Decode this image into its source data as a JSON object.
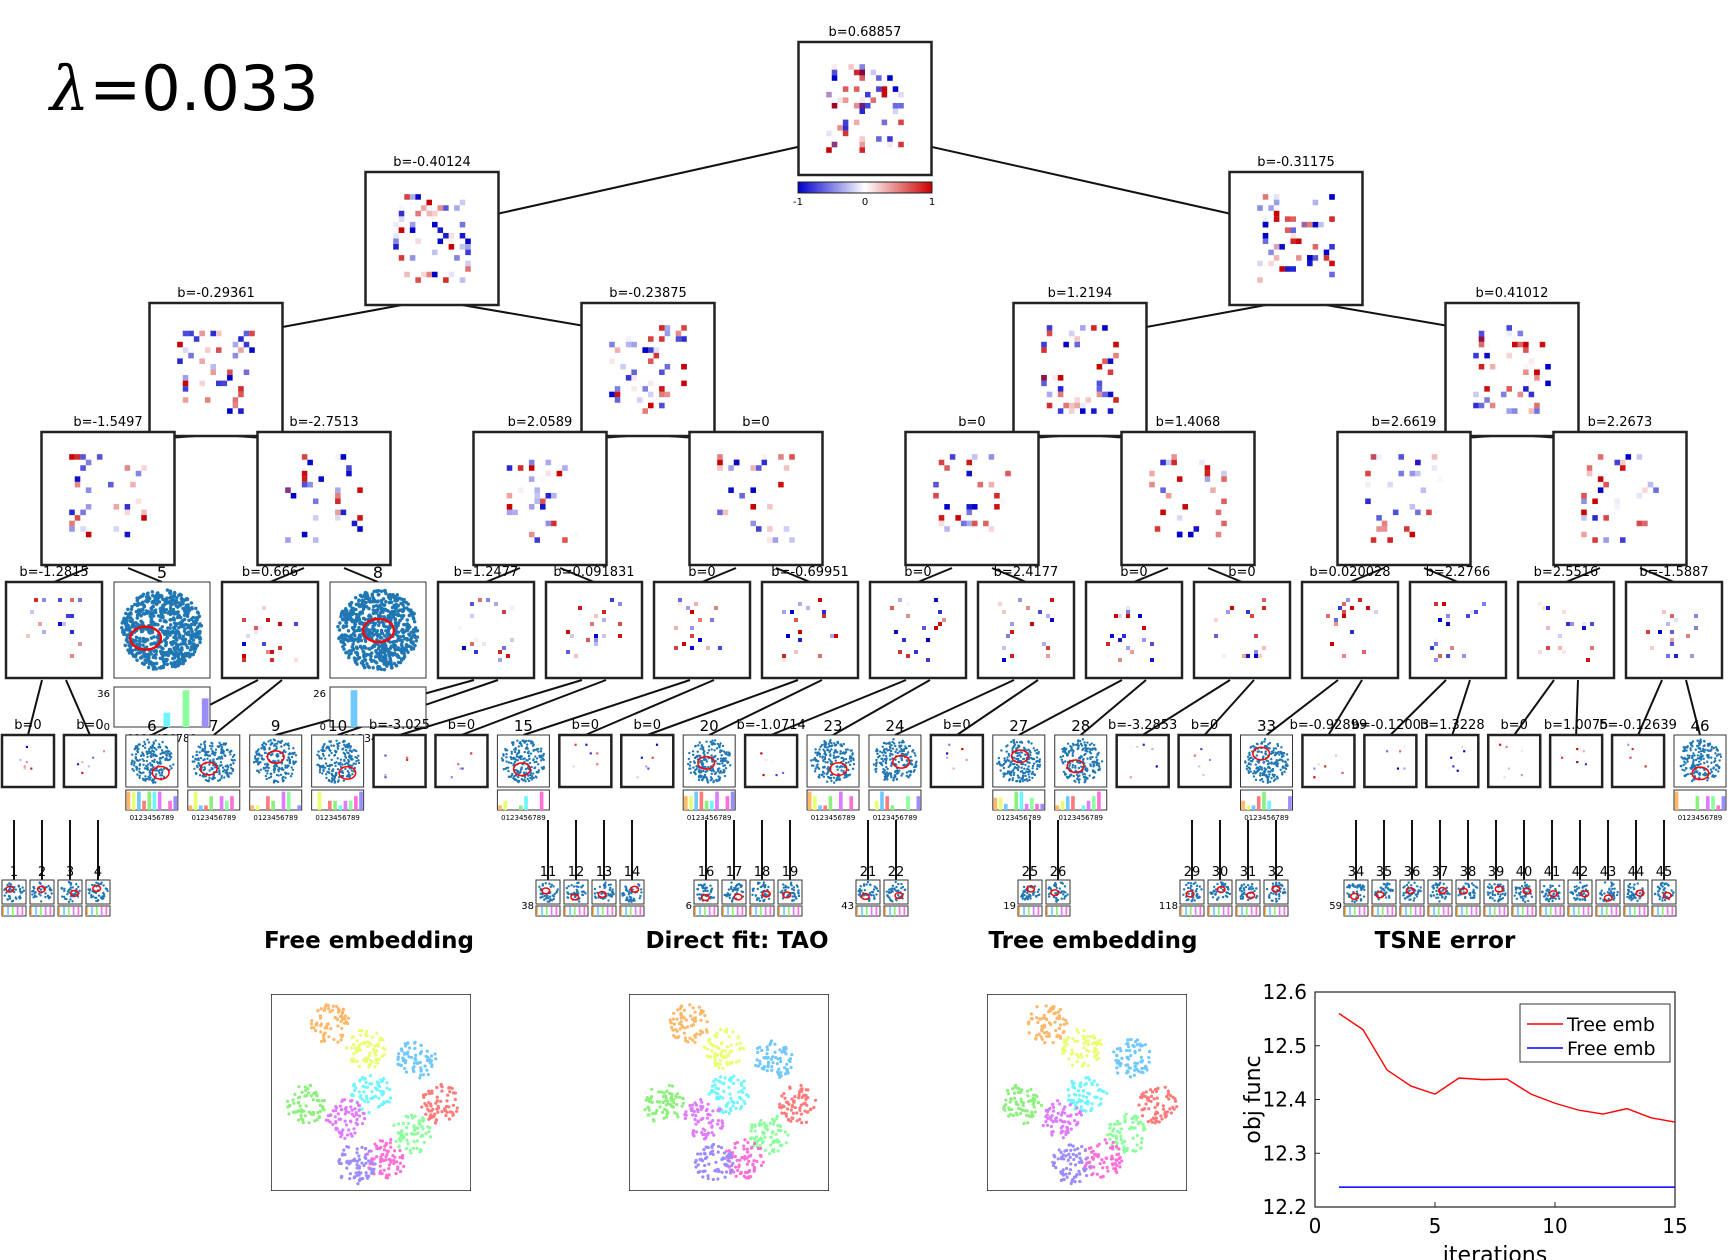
{
  "lambda": {
    "symbol": "λ",
    "text": "=0.033"
  },
  "colorbar": {
    "ticks": [
      "-1",
      "0",
      "1"
    ],
    "colors": [
      "#0000cc",
      "#ffffff",
      "#cc0000"
    ]
  },
  "tree": {
    "root": "b=0.68857",
    "l1": [
      "b=-0.40124",
      "b=-0.31175"
    ],
    "l2": [
      "b=-0.29361",
      "b=-0.23875",
      "b=1.2194",
      "b=0.41012"
    ],
    "l3": [
      "b=-1.5497",
      "b=-2.7513",
      "b=2.0589",
      "b=0",
      "b=0",
      "b=1.4068",
      "b=2.6619",
      "b=2.2673"
    ],
    "l4": [
      "b=-1.2815",
      "5",
      "b=0.666",
      "8",
      "b=1.2477",
      "b=0.091831",
      "b=0",
      "b=-0.69951",
      "b=0",
      "b=2.4177",
      "b=0",
      "b=0",
      "b=0.020028",
      "b=2.2766",
      "b=2.5516",
      "b=-1.5887"
    ],
    "l5": [
      "b=0",
      "b=0",
      "6",
      "7",
      "9",
      "10",
      "b=-3.025",
      "b=0",
      "15",
      "b=0",
      "b=0",
      "20",
      "b=-1.0714",
      "23",
      "24",
      "b=0",
      "27",
      "28",
      "b=-3.2853",
      "b=0",
      "33",
      "b=-0.92899",
      "b=-0.12003",
      "b=1.3228",
      "b=0",
      "b=1.0075",
      "b=-0.12639",
      "46"
    ],
    "leaves": [
      "1",
      "2",
      "3",
      "4",
      "11",
      "12",
      "13",
      "14",
      "16",
      "17",
      "18",
      "19",
      "21",
      "22",
      "25",
      "26",
      "29",
      "30",
      "31",
      "32",
      "34",
      "35",
      "36",
      "37",
      "38",
      "39",
      "40",
      "41",
      "42",
      "43",
      "44",
      "45"
    ]
  },
  "hist_l4": [
    {
      "label": "5",
      "ymax": "36",
      "ymin": "0",
      "xticks": "0123456789",
      "values": [
        0,
        0,
        0,
        0,
        0,
        14,
        0,
        36,
        0,
        28
      ]
    },
    {
      "label": "8",
      "ymax": "26",
      "ymin": "0",
      "xticks": "0123456789",
      "values": [
        0,
        0,
        26,
        0,
        0,
        0,
        0,
        0,
        0,
        0
      ]
    }
  ],
  "hist_l5_labels": {
    "6": {
      "ymax": "7",
      "side": "43"
    },
    "9": {
      "ymax": "1"
    },
    "10": {
      "ymax": "4"
    },
    "b=0": {
      "ymax": "147"
    },
    "20": {
      "ymax": "7"
    },
    "23": {
      "ymax": "59"
    },
    "24": {
      "ymax": "0"
    },
    "27": {
      "ymax": "9"
    },
    "28": {
      "ymax": "49"
    },
    "33": {
      "ymax": "4"
    },
    "46": {
      "ymax": "50"
    }
  },
  "hist_leaf_labels": [
    "38",
    "6",
    "43",
    "19",
    "118",
    "59"
  ],
  "panels": {
    "free": "Free embedding",
    "direct": "Direct fit: TAO",
    "tree": "Tree embedding",
    "error": "TSNE error"
  },
  "chart_data": {
    "type": "line",
    "title": "TSNE error",
    "xlabel": "iterations",
    "ylabel": "obj func",
    "xlim": [
      0,
      15
    ],
    "ylim": [
      12.2,
      12.6
    ],
    "xticks": [
      0,
      5,
      10,
      15
    ],
    "yticks": [
      12.2,
      12.3,
      12.4,
      12.5,
      12.6
    ],
    "legend_position": "top-right",
    "series": [
      {
        "name": "Tree emb",
        "color": "#ff0000",
        "x": [
          1,
          2,
          3,
          4,
          5,
          6,
          7,
          8,
          9,
          10,
          11,
          12,
          13,
          14,
          15
        ],
        "y": [
          12.56,
          12.53,
          12.455,
          12.425,
          12.41,
          12.44,
          12.437,
          12.438,
          12.41,
          12.393,
          12.38,
          12.373,
          12.383,
          12.366,
          12.358
        ]
      },
      {
        "name": "Free emb",
        "color": "#0000ff",
        "x": [
          1,
          2,
          3,
          4,
          5,
          6,
          7,
          8,
          9,
          10,
          11,
          12,
          13,
          14,
          15
        ],
        "y": [
          12.237,
          12.237,
          12.237,
          12.237,
          12.237,
          12.237,
          12.237,
          12.237,
          12.237,
          12.237,
          12.237,
          12.237,
          12.237,
          12.237,
          12.237
        ]
      }
    ]
  },
  "cluster_colors": [
    "#ffb86a",
    "#e8ff70",
    "#70c8ff",
    "#ff7a7a",
    "#8cf07c",
    "#6ff5ff",
    "#e07aff",
    "#8cff9c",
    "#ff6fd8",
    "#9b8cff"
  ]
}
